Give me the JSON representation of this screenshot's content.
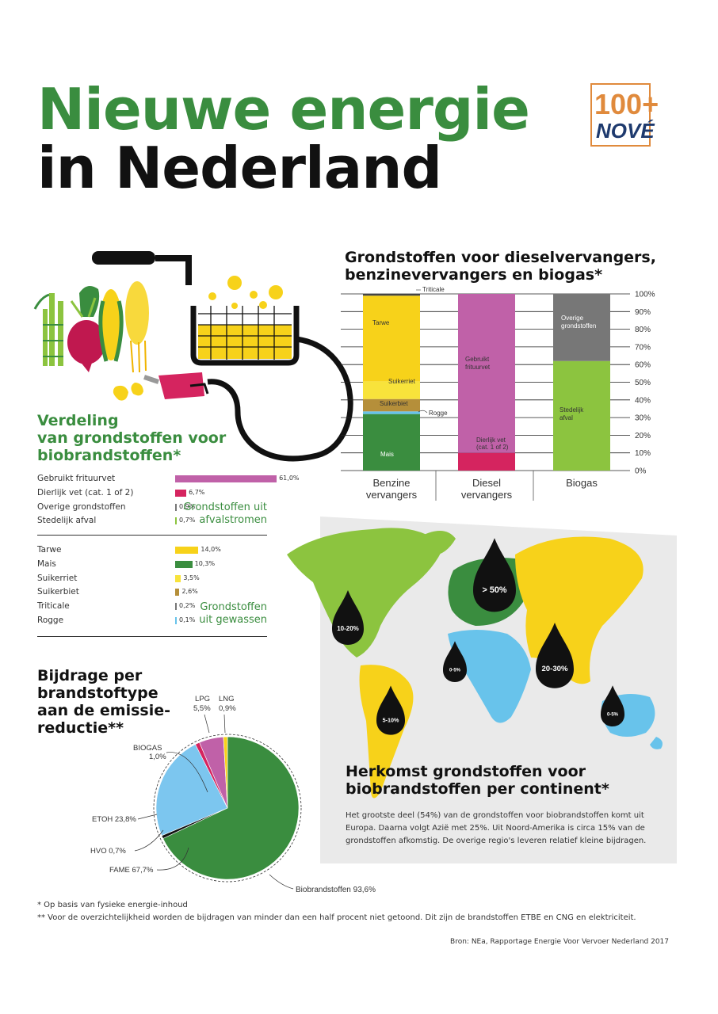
{
  "header": {
    "title_line1": "Nieuwe energie",
    "title_line2": "in Nederland",
    "logo_text_top": "100+",
    "logo_text_bottom": "NOVÉ"
  },
  "colors": {
    "green": "#3a8d3f",
    "purple": "#c061a8",
    "crimson": "#d5245f",
    "grey": "#777777",
    "light_green": "#8cc43f",
    "yellow": "#f7d21a",
    "dark_green": "#3a8d3f",
    "pale_yellow": "#f8e33b",
    "tan": "#b58f3a",
    "light_blue": "#68c3eb"
  },
  "distribution": {
    "title": "Verdeling van grondstoffen voor biobrandstoffen*",
    "title_lines": [
      "Verdeling",
      "van grondstoffen voor",
      "biobrandstoffen*"
    ],
    "group_waste_lines": [
      "Grondstoffen uit",
      "afvalstromen"
    ],
    "group_crops_lines": [
      "Grondstoffen",
      "uit gewassen"
    ],
    "waste_items": [
      {
        "label": "Gebruikt frituurvet",
        "value": 61.0,
        "value_label": "61,0%",
        "color": "#c061a8"
      },
      {
        "label": "Dierlijk vet (cat. 1 of 2)",
        "value": 6.7,
        "value_label": "6,7%",
        "color": "#d5245f"
      },
      {
        "label": "Overige grondstoffen",
        "value": 0.9,
        "value_label": "0,9%",
        "color": "#777777"
      },
      {
        "label": "Stedelijk afval",
        "value": 0.7,
        "value_label": "0,7%",
        "color": "#8cc43f"
      }
    ],
    "crop_items": [
      {
        "label": "Tarwe",
        "value": 14.0,
        "value_label": "14,0%",
        "color": "#f7d21a"
      },
      {
        "label": "Mais",
        "value": 10.3,
        "value_label": "10,3%",
        "color": "#3a8d3f"
      },
      {
        "label": "Suikerriet",
        "value": 3.5,
        "value_label": "3,5%",
        "color": "#f8e33b"
      },
      {
        "label": "Suikerbiet",
        "value": 2.6,
        "value_label": "2,6%",
        "color": "#b58f3a"
      },
      {
        "label": "Triticale",
        "value": 0.2,
        "value_label": "0,2%",
        "color": "#777777"
      },
      {
        "label": "Rogge",
        "value": 0.1,
        "value_label": "0,1%",
        "color": "#68c3eb"
      }
    ]
  },
  "stacked": {
    "title_lines": [
      "Grondstoffen voor dieselvervangers,",
      "benzinevervangers en biogas*"
    ],
    "y_ticks": [
      "0%",
      "10%",
      "20%",
      "30%",
      "40%",
      "50%",
      "60%",
      "70%",
      "80%",
      "90%",
      "100%"
    ],
    "columns": [
      {
        "label_lines": [
          "Benzine",
          "vervangers"
        ],
        "segments": [
          {
            "name": "Mais",
            "value": 32,
            "color": "#3a8d3f"
          },
          {
            "name": "Rogge",
            "value": 1.5,
            "color": "#68c3eb"
          },
          {
            "name": "Suikerbiet",
            "value": 7,
            "color": "#b58f3a"
          },
          {
            "name": "Suikerriet",
            "value": 10,
            "color": "#f8e33b"
          },
          {
            "name": "Tarwe",
            "value": 48.5,
            "color": "#f7d21a"
          },
          {
            "name": "Triticale",
            "value": 1,
            "color": "#444444"
          }
        ]
      },
      {
        "label_lines": [
          "Diesel",
          "vervangers"
        ],
        "segments": [
          {
            "name": "Dierlijk vet (cat. 1 of 2)",
            "value": 10,
            "color": "#d5245f"
          },
          {
            "name": "Gebruikt frituurvet",
            "value": 90,
            "color": "#c061a8"
          }
        ]
      },
      {
        "label_lines": [
          "Biogas"
        ],
        "segments": [
          {
            "name": "Stedelijk afval",
            "value": 62,
            "color": "#8cc43f"
          },
          {
            "name": "Overige grondstoffen",
            "value": 38,
            "color": "#777777"
          }
        ]
      }
    ],
    "labels": {
      "triticale": "Triticale",
      "tarwe": "Tarwe",
      "suikerriet": "Suikerriet",
      "suikerbiet": "Suikerbiet",
      "rogge": "Rogge",
      "mais": "Mais",
      "frituurvet_lines": [
        "Gebruikt",
        "frituurvet"
      ],
      "dierlijk_lines": [
        "Dierlijk vet",
        "(cat. 1 of 2)"
      ],
      "overige_lines": [
        "Overige",
        "grondstoffen"
      ],
      "stedelijk_lines": [
        "Stedelijk",
        "afval"
      ]
    }
  },
  "pie": {
    "title_lines": [
      "Bijdrage per",
      "brandstoftype",
      "aan de emissie-",
      "reductie**"
    ],
    "slices": [
      {
        "name": "FAME",
        "value": 67.7,
        "value_label": "67,7%",
        "color": "#3a8d3f"
      },
      {
        "name": "HVO",
        "value": 0.7,
        "value_label": "0,7%",
        "color": "#111111"
      },
      {
        "name": "ETOH",
        "value": 23.8,
        "value_label": "23,8%",
        "color": "#7cc6ef"
      },
      {
        "name": "BIOGAS",
        "value": 1.0,
        "value_label": "1,0%",
        "color": "#d5245f"
      },
      {
        "name": "LPG",
        "value": 5.5,
        "value_label": "5,5%",
        "color": "#c061a8"
      },
      {
        "name": "LNG",
        "value": 0.9,
        "value_label": "0,9%",
        "color": "#f7d21a"
      }
    ],
    "bio_label": "Biobrandstoffen 93,6%",
    "labels": {
      "lng": "LNG",
      "lng_val": "0,9%",
      "lpg": "LPG",
      "lpg_val": "5,5%",
      "biogas": "BIOGAS",
      "biogas_val": "1,0%",
      "etoh": "ETOH 23,8%",
      "hvo": "HVO 0,7%",
      "fame": "FAME 67,7%"
    }
  },
  "map": {
    "title_lines": [
      "Herkomst grondstoffen voor",
      "biobrandstoffen per continent*"
    ],
    "description": "Het grootste deel (54%) van de grondstoffen voor biobrandstoffen komt uit Europa. Daarna volgt Azië met 25%. Uit Noord-Amerika is circa 15% van de grondstoffen afkomstig. De overige regio's leveren relatief kleine bijdragen.",
    "regions": [
      {
        "name": "Noord-Amerika",
        "range": "10-20%",
        "color": "#8cc43f"
      },
      {
        "name": "Europa",
        "range": "> 50%",
        "color": "#3a8d3f"
      },
      {
        "name": "Azië",
        "range": "20-30%",
        "color": "#f7d21a"
      },
      {
        "name": "Zuid-Amerika",
        "range": "5-10%",
        "color": "#f7d21a"
      },
      {
        "name": "Afrika",
        "range": "0-5%",
        "color": "#68c3eb"
      },
      {
        "name": "Oceanië",
        "range": "0-5%",
        "color": "#68c3eb"
      }
    ]
  },
  "footnotes": {
    "fn1": "*  Op basis van fysieke energie-inhoud",
    "fn2": "** Voor de overzichtelijkheid worden de bijdragen van minder dan een half procent niet getoond. Dit zijn de brandstoffen ETBE en CNG en elektriciteit.",
    "source": "Bron: NEa, Rapportage Energie Voor Vervoer Nederland 2017"
  }
}
